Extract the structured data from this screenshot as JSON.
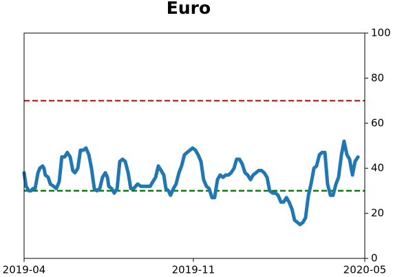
{
  "chart_data": {
    "type": "line",
    "title": "Euro",
    "x": [
      0,
      0.08,
      0.18,
      0.26,
      0.34,
      0.42,
      0.53,
      0.6,
      0.71,
      0.76,
      0.81,
      0.92,
      1.0,
      1.13,
      1.23,
      1.34,
      1.44,
      1.55,
      1.65,
      1.76,
      1.86,
      1.94,
      2.05,
      2.15,
      2.26,
      2.36,
      2.47,
      2.57,
      2.68,
      2.78,
      2.89,
      2.99,
      3.1,
      3.18,
      3.23,
      3.34,
      3.44,
      3.55,
      3.65,
      3.76,
      3.86,
      3.97,
      4.07,
      4.18,
      4.33,
      4.46,
      4.65,
      4.81,
      4.91,
      5.02,
      5.12,
      5.23,
      5.33,
      5.41,
      5.51,
      5.59,
      5.7,
      5.8,
      5.91,
      6.01,
      6.12,
      6.22,
      6.33,
      6.43,
      6.54,
      6.64,
      6.75,
      6.85,
      6.96,
      7.06,
      7.17,
      7.27,
      7.38,
      7.48,
      7.59,
      7.69,
      7.8,
      7.9,
      8.01,
      8.11,
      8.22,
      8.32,
      8.43,
      8.53,
      8.64,
      8.74,
      8.85,
      8.95,
      9.06,
      9.16,
      9.27,
      9.37,
      9.48,
      9.59,
      9.69,
      9.8,
      9.9,
      10.01,
      10.11,
      10.22,
      10.32,
      10.43,
      10.53,
      10.64,
      10.74,
      10.85,
      10.95,
      11.06,
      11.16,
      11.27,
      11.37,
      11.48,
      11.58,
      11.69,
      11.79,
      11.9,
      12.0,
      12.11,
      12.21,
      12.32,
      12.42,
      12.53,
      12.63,
      12.74
    ],
    "series": [
      {
        "color": "#1f77b4",
        "values": [
          38,
          32,
          30,
          30,
          31,
          31,
          38,
          40,
          41,
          40,
          37,
          36,
          33,
          32,
          31,
          34,
          45,
          45,
          47,
          45,
          39,
          38,
          40,
          48,
          48,
          49,
          46,
          40,
          31,
          30,
          31,
          36,
          38,
          36,
          32,
          31,
          29,
          31,
          43,
          44,
          43,
          38,
          31,
          31,
          33,
          32,
          32,
          32,
          34,
          36,
          41,
          39,
          37,
          31,
          30,
          28,
          31,
          33,
          38,
          41,
          46,
          47,
          48,
          49,
          48,
          46,
          43,
          35,
          32,
          31,
          27,
          27,
          35,
          37,
          36,
          37,
          37,
          38,
          40,
          44,
          44,
          42,
          38,
          37,
          35,
          37,
          38,
          39,
          39,
          38,
          36,
          30,
          29,
          29,
          28,
          25,
          25,
          27,
          25,
          22,
          17,
          16,
          15,
          16,
          18,
          28,
          33,
          40,
          41,
          46,
          47,
          47,
          33,
          28,
          28,
          33,
          36,
          46,
          52,
          46,
          44,
          37,
          43,
          45
        ]
      }
    ],
    "hlines": [
      {
        "value": 70,
        "color": "#d62728"
      },
      {
        "value": 30,
        "color": "#008000"
      }
    ],
    "xlim": [
      0,
      13
    ],
    "xticks": [
      {
        "value": 0,
        "label": "2019-04"
      },
      {
        "value": 6.46,
        "label": "2019-11"
      },
      {
        "value": 13,
        "label": "2020-05"
      }
    ],
    "ylim": [
      0,
      100
    ],
    "yticks": [
      0,
      20,
      40,
      60,
      80,
      100
    ],
    "y_axis_side": "right"
  }
}
